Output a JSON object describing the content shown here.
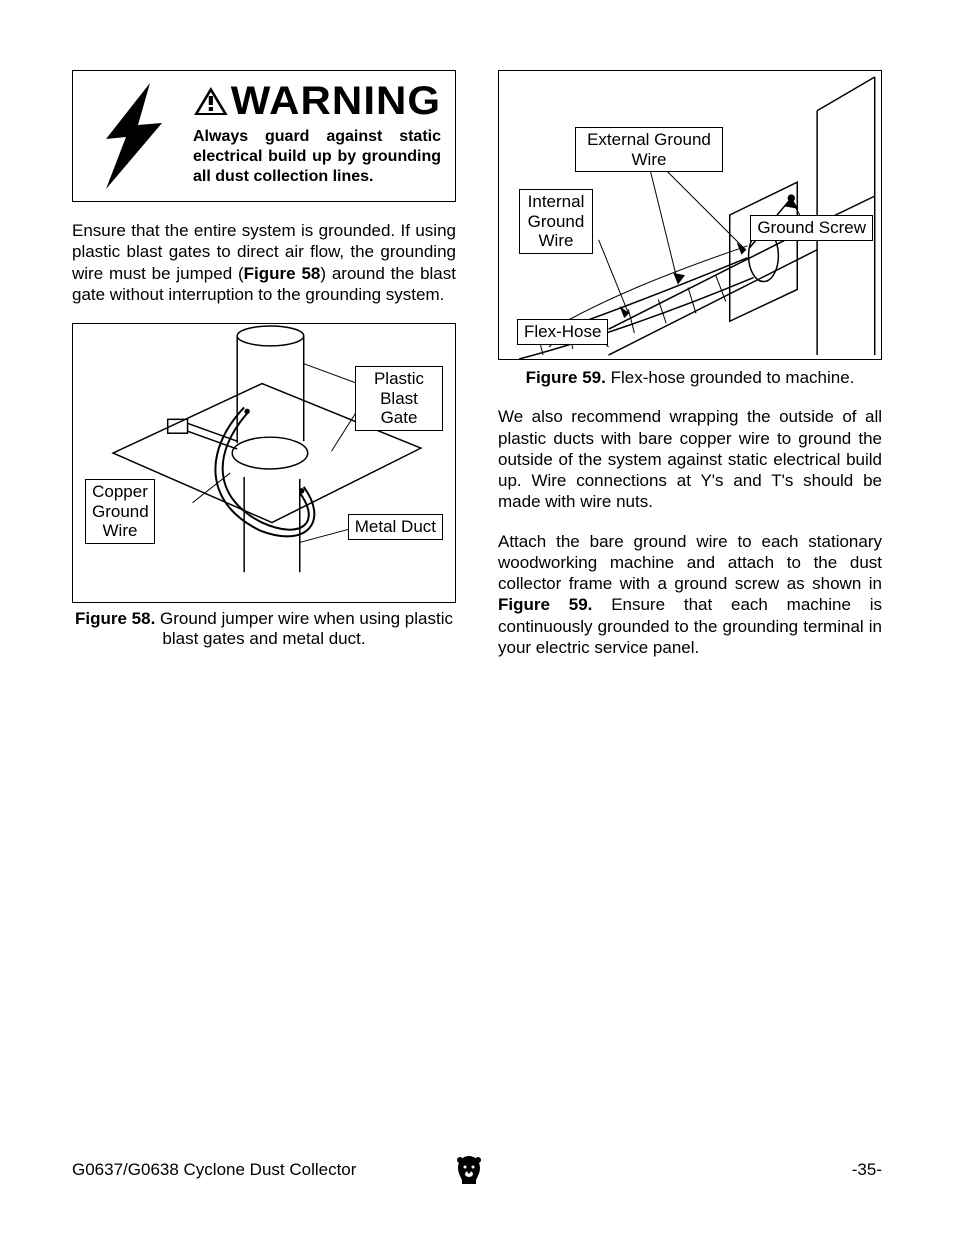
{
  "warning": {
    "heading": "WARNING",
    "body": "Always guard against static electrical build up by grounding all dust collection lines."
  },
  "para1_a": "Ensure that the entire system is grounded. If using plastic blast gates to direct air flow, the grounding wire must be jumped (",
  "para1_b_bold": "Figure 58",
  "para1_c": ") around the blast gate without interruption to the grounding system.",
  "fig58": {
    "label_plastic": "Plastic\nBlast Gate",
    "label_copper": "Copper\nGround\nWire",
    "label_metal": "Metal Duct",
    "caption_bold": "Figure 58.",
    "caption_rest": " Ground jumper wire when using plastic blast gates and metal duct."
  },
  "fig59": {
    "label_external": "External Ground\nWire",
    "label_internal": "Internal\nGround\nWire",
    "label_screw": "Ground Screw",
    "label_flex": "Flex-Hose",
    "caption_bold": "Figure 59.",
    "caption_rest": " Flex-hose grounded to machine."
  },
  "para2": "We also recommend wrapping the outside of all plastic ducts with bare copper wire to ground the outside of the system against static electrical build up. Wire connections at Y's and T's should be made with wire nuts.",
  "para3_a": "Attach the bare ground wire to each stationary woodworking machine and attach to the dust collector frame with a ground screw as shown in ",
  "para3_b_bold": "Figure 59.",
  "para3_c": " Ensure that each machine is continuously grounded to the grounding terminal in your electric service panel.",
  "footer": {
    "left": "G0637/G0638 Cyclone Dust Collector",
    "right": "-35-"
  },
  "colors": {
    "text": "#000000",
    "bg": "#ffffff",
    "line": "#000000"
  }
}
